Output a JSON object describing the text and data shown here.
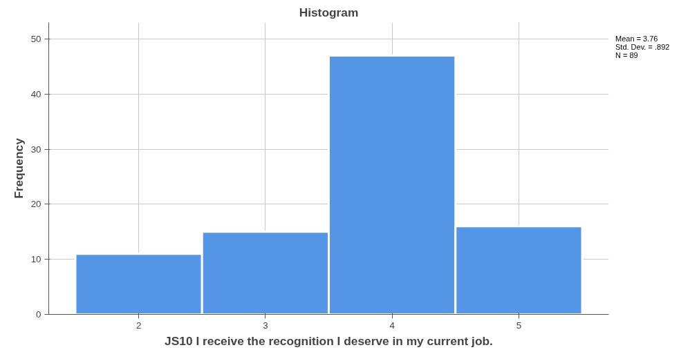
{
  "chart_data": {
    "type": "histogram",
    "title": "Histogram",
    "xlabel": "JS10 I receive the recognition I deserve in my current job.",
    "ylabel": "Frequency",
    "bins": [
      1.5,
      2.5,
      3.5,
      4.5,
      5.5
    ],
    "values": [
      11,
      15,
      47,
      16
    ],
    "color": "#5596e6",
    "xlim": [
      1.29,
      5.71
    ],
    "xticks": [
      2,
      3,
      4,
      5
    ],
    "ylim": [
      0,
      53
    ],
    "yticks": [
      0,
      10,
      20,
      30,
      40,
      50
    ],
    "grid": true,
    "annotations": [
      "Mean = 3.76",
      "Std. Dev. = .892",
      "N = 89"
    ]
  }
}
